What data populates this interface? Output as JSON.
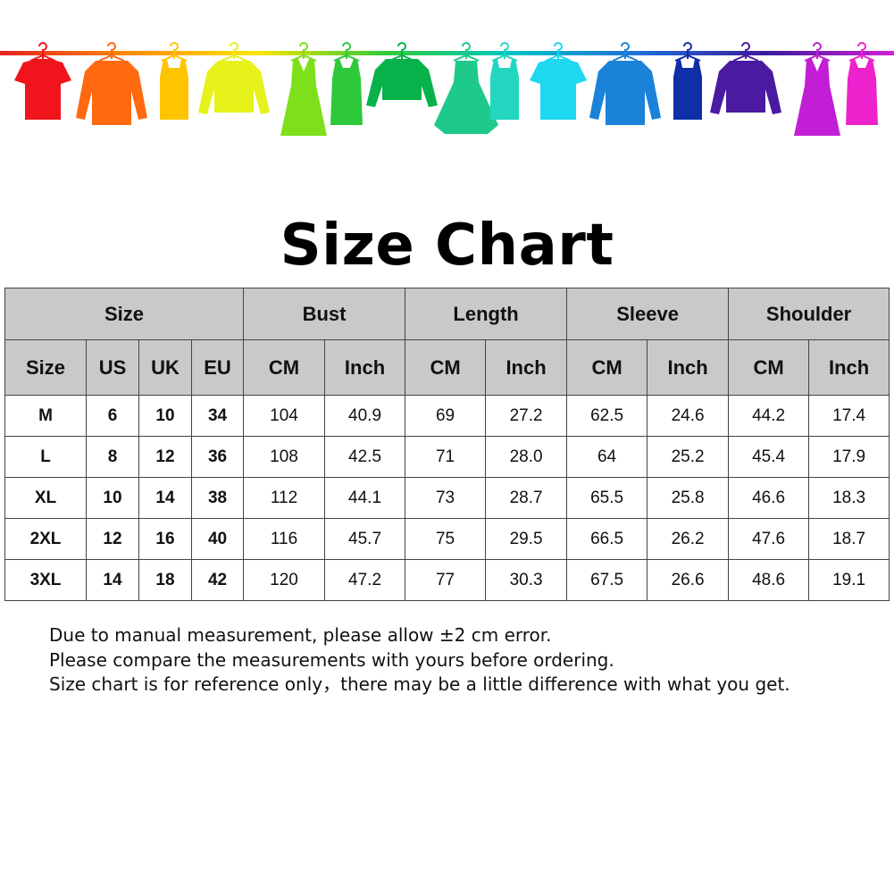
{
  "banner": {
    "rail_gradient": [
      "#e52222",
      "#ff8a00",
      "#ffe600",
      "#33cc33",
      "#00c4c4",
      "#1e6fd9",
      "#3a1aa0",
      "#d61fd6"
    ],
    "items": [
      {
        "icon": "tshirt-icon",
        "color": "#f0141c"
      },
      {
        "icon": "shirt-icon",
        "color": "#ff6a10"
      },
      {
        "icon": "tank-top-icon",
        "color": "#ffc400"
      },
      {
        "icon": "cardigan-icon",
        "color": "#e6f21a"
      },
      {
        "icon": "dress-icon",
        "color": "#7ee01a"
      },
      {
        "icon": "belted-dress-icon",
        "color": "#2ec93a"
      },
      {
        "icon": "sweater-icon",
        "color": "#08b24a"
      },
      {
        "icon": "flared-dress-icon",
        "color": "#1ec98a"
      },
      {
        "icon": "tank-top-icon",
        "color": "#22d6c0"
      },
      {
        "icon": "tshirt-icon",
        "color": "#1ed8f0"
      },
      {
        "icon": "shirt-icon",
        "color": "#1a82d8"
      },
      {
        "icon": "tank-top-icon",
        "color": "#0f2ea8"
      },
      {
        "icon": "cardigan-icon",
        "color": "#4a1aa0"
      },
      {
        "icon": "dress-icon",
        "color": "#c21ed6"
      },
      {
        "icon": "belted-dress-icon",
        "color": "#ee22cc"
      }
    ]
  },
  "title": "Size Chart",
  "table": {
    "group_headers": [
      "Size",
      "Bust",
      "Length",
      "Sleeve",
      "Shoulder"
    ],
    "sub_headers": [
      "Size",
      "US",
      "UK",
      "EU",
      "CM",
      "Inch",
      "CM",
      "Inch",
      "CM",
      "Inch",
      "CM",
      "Inch"
    ],
    "rows": [
      [
        "M",
        "6",
        "10",
        "34",
        "104",
        "40.9",
        "69",
        "27.2",
        "62.5",
        "24.6",
        "44.2",
        "17.4"
      ],
      [
        "L",
        "8",
        "12",
        "36",
        "108",
        "42.5",
        "71",
        "28.0",
        "64",
        "25.2",
        "45.4",
        "17.9"
      ],
      [
        "XL",
        "10",
        "14",
        "38",
        "112",
        "44.1",
        "73",
        "28.7",
        "65.5",
        "25.8",
        "46.6",
        "18.3"
      ],
      [
        "2XL",
        "12",
        "16",
        "40",
        "116",
        "45.7",
        "75",
        "29.5",
        "66.5",
        "26.2",
        "47.6",
        "18.7"
      ],
      [
        "3XL",
        "14",
        "18",
        "42",
        "120",
        "47.2",
        "77",
        "30.3",
        "67.5",
        "26.6",
        "48.6",
        "19.1"
      ]
    ]
  },
  "notes": [
    "Due to manual measurement, please allow ±2 cm error.",
    "Please compare the measurements with yours before ordering.",
    "Size chart is for reference only，there may be a little difference with what you get."
  ]
}
